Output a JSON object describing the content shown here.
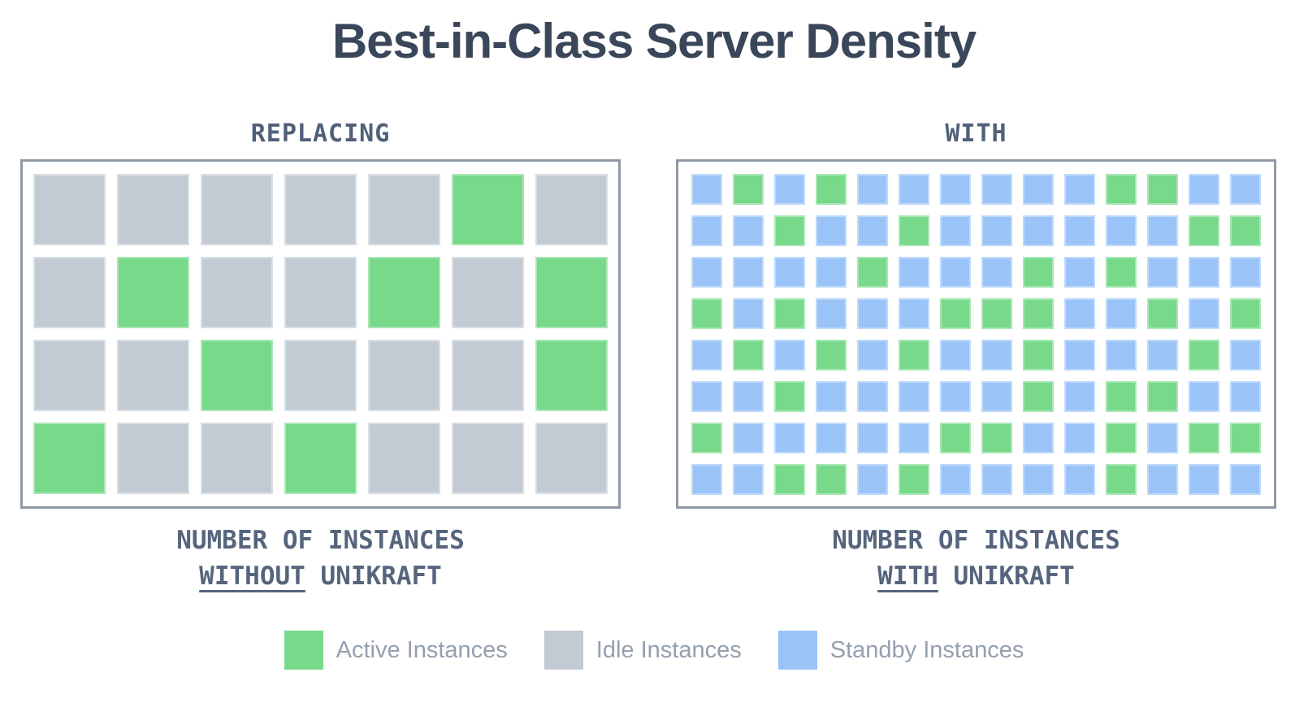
{
  "title": "Best-in-Class Server Density",
  "colors": {
    "active": "#77d989",
    "idle": "#c2cbd4",
    "standby": "#9ac4f8",
    "box_border": "#8e99a6",
    "title_text": "#3a4659",
    "header_text": "#51607a",
    "caption_text": "#56657d",
    "legend_text": "#95a0ae"
  },
  "cell_types": {
    "a": "active",
    "i": "idle",
    "s": "standby"
  },
  "panels": [
    {
      "header": "REPLACING",
      "caption_line1": "NUMBER OF INSTANCES",
      "caption_emphasis": "WITHOUT",
      "caption_rest": "UNIKRAFT",
      "grid": {
        "columns": 7,
        "rows": 4,
        "cells": [
          [
            "i",
            "i",
            "i",
            "i",
            "i",
            "a",
            "i"
          ],
          [
            "i",
            "a",
            "i",
            "i",
            "a",
            "i",
            "a"
          ],
          [
            "i",
            "i",
            "a",
            "i",
            "i",
            "i",
            "a"
          ],
          [
            "a",
            "i",
            "i",
            "a",
            "i",
            "i",
            "i"
          ]
        ],
        "counts": {
          "active": 8,
          "idle": 20,
          "total": 28
        }
      }
    },
    {
      "header": "WITH",
      "caption_line1": "NUMBER OF INSTANCES",
      "caption_emphasis": "WITH",
      "caption_rest": "UNIKRAFT",
      "grid": {
        "columns": 14,
        "rows": 8,
        "cells": [
          [
            "s",
            "a",
            "s",
            "a",
            "s",
            "s",
            "s",
            "s",
            "s",
            "s",
            "a",
            "a",
            "s",
            "s"
          ],
          [
            "s",
            "s",
            "a",
            "s",
            "s",
            "a",
            "s",
            "s",
            "s",
            "s",
            "s",
            "s",
            "a",
            "a"
          ],
          [
            "s",
            "s",
            "s",
            "s",
            "a",
            "s",
            "s",
            "s",
            "a",
            "s",
            "a",
            "s",
            "s",
            "s"
          ],
          [
            "a",
            "s",
            "a",
            "s",
            "s",
            "s",
            "a",
            "a",
            "a",
            "s",
            "s",
            "a",
            "s",
            "a"
          ],
          [
            "s",
            "a",
            "s",
            "a",
            "s",
            "a",
            "s",
            "s",
            "a",
            "s",
            "s",
            "s",
            "a",
            "s"
          ],
          [
            "s",
            "s",
            "a",
            "s",
            "s",
            "s",
            "s",
            "s",
            "a",
            "s",
            "a",
            "a",
            "s",
            "s"
          ],
          [
            "a",
            "s",
            "s",
            "s",
            "s",
            "s",
            "a",
            "a",
            "s",
            "s",
            "a",
            "s",
            "a",
            "a"
          ],
          [
            "s",
            "s",
            "a",
            "a",
            "s",
            "a",
            "s",
            "s",
            "s",
            "s",
            "a",
            "s",
            "s",
            "s"
          ]
        ],
        "counts": {
          "active": 37,
          "standby": 75,
          "total": 112
        }
      }
    }
  ],
  "legend": [
    {
      "key": "active",
      "label": "Active Instances",
      "color": "#77d989"
    },
    {
      "key": "idle",
      "label": "Idle Instances",
      "color": "#c2cbd4"
    },
    {
      "key": "standby",
      "label": "Standby Instances",
      "color": "#9ac4f8"
    }
  ],
  "chart_data": [
    {
      "type": "heatmap",
      "title": "REPLACING",
      "subtitle": "NUMBER OF INSTANCES WITHOUT UNIKRAFT",
      "rows": 4,
      "columns": 7,
      "categories": [
        "active",
        "idle"
      ],
      "category_colors": {
        "active": "#77d989",
        "idle": "#c2cbd4"
      },
      "matrix": [
        [
          "idle",
          "idle",
          "idle",
          "idle",
          "idle",
          "active",
          "idle"
        ],
        [
          "idle",
          "active",
          "idle",
          "idle",
          "active",
          "idle",
          "active"
        ],
        [
          "idle",
          "idle",
          "active",
          "idle",
          "idle",
          "idle",
          "active"
        ],
        [
          "active",
          "idle",
          "idle",
          "active",
          "idle",
          "idle",
          "idle"
        ]
      ],
      "totals": {
        "active": 8,
        "idle": 20,
        "total_instances": 28
      },
      "legend_position": "bottom",
      "grid_lines": false
    },
    {
      "type": "heatmap",
      "title": "WITH",
      "subtitle": "NUMBER OF INSTANCES WITH UNIKRAFT",
      "rows": 8,
      "columns": 14,
      "categories": [
        "active",
        "standby"
      ],
      "category_colors": {
        "active": "#77d989",
        "standby": "#9ac4f8"
      },
      "matrix": [
        [
          "standby",
          "active",
          "standby",
          "active",
          "standby",
          "standby",
          "standby",
          "standby",
          "standby",
          "standby",
          "active",
          "active",
          "standby",
          "standby"
        ],
        [
          "standby",
          "standby",
          "active",
          "standby",
          "standby",
          "active",
          "standby",
          "standby",
          "standby",
          "standby",
          "standby",
          "standby",
          "active",
          "active"
        ],
        [
          "standby",
          "standby",
          "standby",
          "standby",
          "active",
          "standby",
          "standby",
          "standby",
          "active",
          "standby",
          "active",
          "standby",
          "standby",
          "standby"
        ],
        [
          "active",
          "standby",
          "active",
          "standby",
          "standby",
          "standby",
          "active",
          "active",
          "active",
          "standby",
          "standby",
          "active",
          "standby",
          "active"
        ],
        [
          "standby",
          "active",
          "standby",
          "active",
          "standby",
          "active",
          "standby",
          "standby",
          "active",
          "standby",
          "standby",
          "standby",
          "active",
          "standby"
        ],
        [
          "standby",
          "standby",
          "active",
          "standby",
          "standby",
          "standby",
          "standby",
          "standby",
          "active",
          "standby",
          "active",
          "active",
          "standby",
          "standby"
        ],
        [
          "active",
          "standby",
          "standby",
          "standby",
          "standby",
          "standby",
          "active",
          "active",
          "standby",
          "standby",
          "active",
          "standby",
          "active",
          "active"
        ],
        [
          "standby",
          "standby",
          "active",
          "active",
          "standby",
          "active",
          "standby",
          "standby",
          "standby",
          "standby",
          "active",
          "standby",
          "standby",
          "standby"
        ]
      ],
      "totals": {
        "active": 37,
        "standby": 75,
        "total_instances": 112
      },
      "legend_position": "bottom",
      "grid_lines": false
    }
  ]
}
